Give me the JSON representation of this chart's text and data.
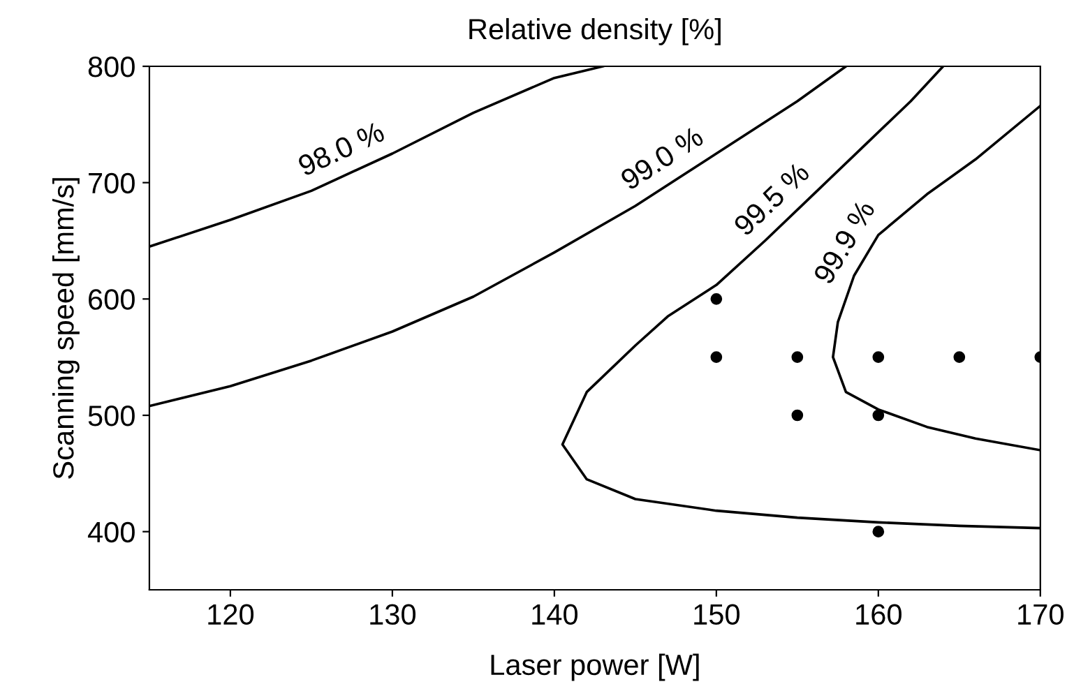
{
  "chart_data": {
    "type": "line",
    "title": "Relative density [%]",
    "xlabel": "Laser power [W]",
    "ylabel": "Scanning speed [mm/s]",
    "xlim": [
      115,
      170
    ],
    "ylim": [
      350,
      800
    ],
    "xticks": [
      120,
      130,
      140,
      150,
      160,
      170
    ],
    "yticks": [
      400,
      500,
      600,
      700,
      800
    ],
    "grid": false,
    "marker": "none",
    "line_style": "solid",
    "series": [
      {
        "name": "98.0 %",
        "color": "#000000",
        "x": [
          115,
          120,
          125,
          130,
          135,
          140,
          143
        ],
        "values": [
          645,
          668,
          693,
          725,
          760,
          790,
          800
        ]
      },
      {
        "name": "99.0 %",
        "color": "#000000",
        "x": [
          115,
          120,
          125,
          130,
          135,
          140,
          145,
          150,
          155,
          158
        ],
        "values": [
          508,
          525,
          547,
          572,
          602,
          640,
          680,
          725,
          770,
          800
        ]
      },
      {
        "name": "99.5 %",
        "color": "#000000",
        "x": [
          164,
          162,
          159,
          156,
          153,
          150,
          147,
          145,
          142,
          140.5,
          142,
          145,
          150,
          155,
          160,
          165,
          170
        ],
        "values": [
          800,
          770,
          730,
          690,
          650,
          612,
          585,
          560,
          520,
          475,
          445,
          428,
          418,
          412,
          408,
          405,
          403
        ]
      },
      {
        "name": "99.9 %",
        "color": "#000000",
        "x": [
          170,
          166,
          163,
          160,
          158.5,
          157.5,
          157.2,
          158,
          160,
          163,
          166,
          170
        ],
        "values": [
          766,
          720,
          690,
          655,
          620,
          580,
          550,
          520,
          505,
          490,
          480,
          470
        ]
      },
      {
        "type": "scatter",
        "color": "#000000",
        "marker": "circle",
        "x": [
          150,
          150,
          155,
          160,
          165,
          170,
          155,
          160,
          160
        ],
        "values": [
          600,
          550,
          550,
          550,
          550,
          550,
          500,
          500,
          400
        ]
      }
    ]
  }
}
